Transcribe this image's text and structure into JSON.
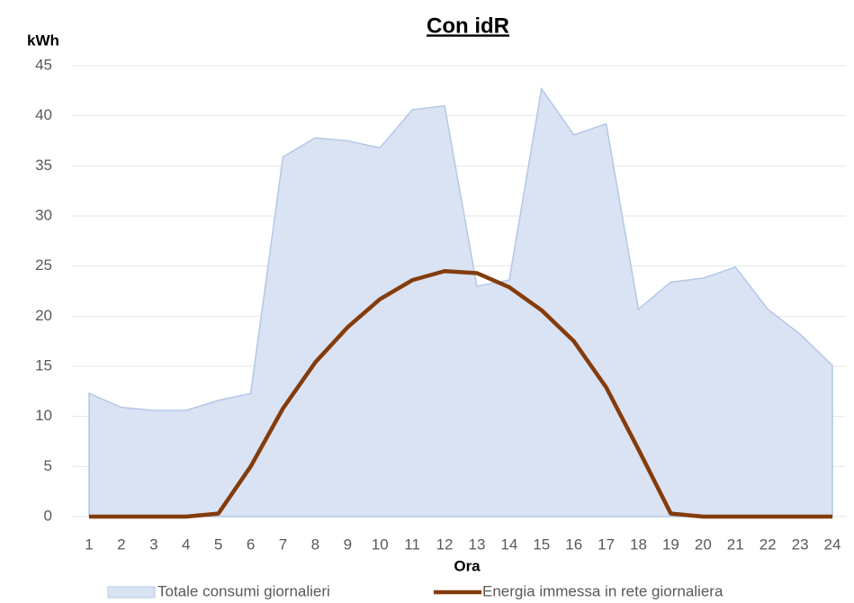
{
  "chart_data": {
    "type": "area",
    "title": "Con idR",
    "y_label": "kWh",
    "x_label": "Ora",
    "categories": [
      "1",
      "2",
      "3",
      "4",
      "5",
      "6",
      "7",
      "8",
      "9",
      "10",
      "11",
      "12",
      "13",
      "14",
      "15",
      "16",
      "17",
      "18",
      "19",
      "20",
      "21",
      "22",
      "23",
      "24"
    ],
    "series": [
      {
        "name": "Totale consumi giornalieri",
        "type": "area",
        "color": "#dae3f3",
        "stroke": "#b4c7e7",
        "values": [
          12.3,
          10.9,
          10.6,
          10.6,
          11.6,
          12.3,
          35.9,
          37.8,
          37.5,
          36.8,
          40.6,
          41.0,
          23.0,
          23.6,
          42.7,
          38.1,
          39.2,
          20.7,
          23.4,
          23.8,
          24.9,
          20.7,
          18.2,
          15.1
        ]
      },
      {
        "name": "Energia immessa in rete giornaliera",
        "type": "line",
        "color": "#843c0c",
        "values": [
          0,
          0,
          0,
          0,
          0.3,
          5.0,
          10.8,
          15.4,
          18.9,
          21.7,
          23.6,
          24.5,
          24.3,
          22.9,
          20.6,
          17.5,
          12.9,
          6.7,
          0.3,
          0,
          0,
          0,
          0,
          0
        ]
      }
    ],
    "ylim": [
      0,
      45
    ],
    "yticks": [
      0,
      5,
      10,
      15,
      20,
      25,
      30,
      35,
      40,
      45
    ],
    "grid": true,
    "legend": "bottom"
  }
}
